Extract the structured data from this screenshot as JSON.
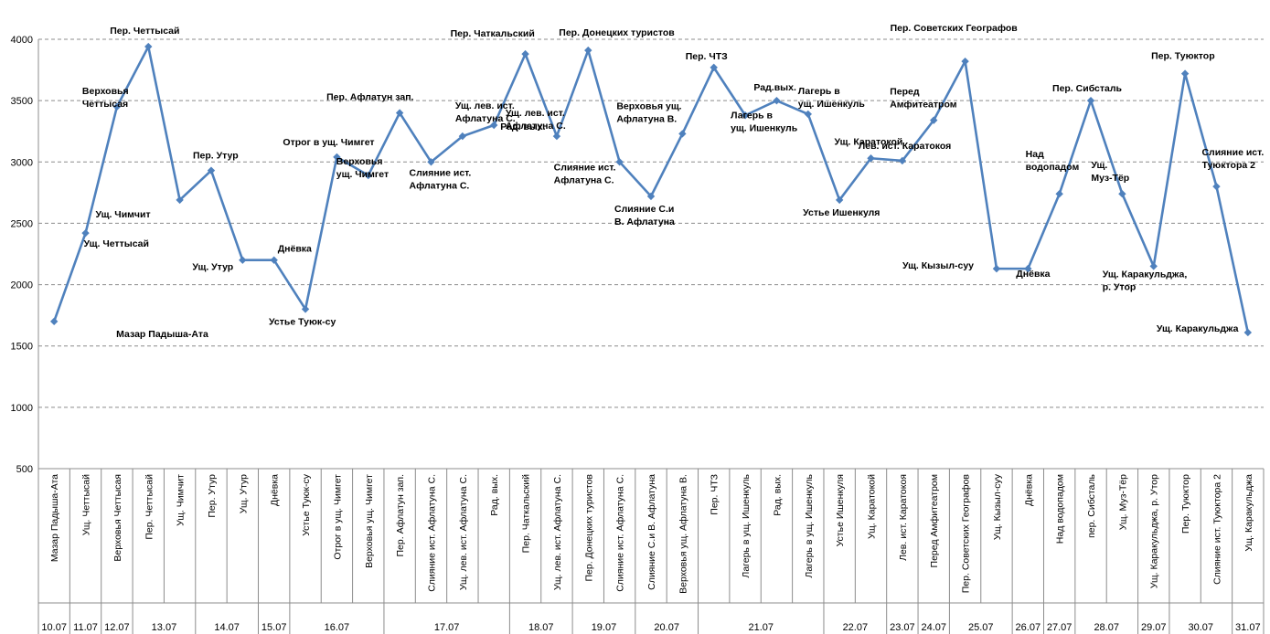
{
  "chart_data": {
    "type": "line",
    "ylim": [
      500,
      4000
    ],
    "yticks": [
      500,
      1000,
      1500,
      2000,
      2500,
      3000,
      3500,
      4000
    ],
    "grid": true,
    "legend": "none",
    "color": "#4f81bd",
    "categories": [
      "Мазар Падыша-Ата",
      "Ущ. Четтысай",
      "Верховья Четтысая",
      "Пер. Четтысай",
      "Ущ. Чимчит",
      "Пер. Утур",
      "Ущ. Утур",
      "Днёвка",
      "Устье Туюк-су",
      "Отрог в ущ. Чимгет",
      "Верховья ущ. Чимгет",
      "Пер. Афлатун зап.",
      "Слияние ист. Афлатуна С.",
      "Ущ. лев. ист. Афлатуна С.",
      "Рад. вых.",
      "Пер. Чаткальский",
      "Ущ. лев. ист. Афлатуна С.",
      "Пер. Донецких туристов",
      "Слияние ист. Афлатуна С.",
      "Слияние С.и В. Афлатуна",
      "Верховья ущ. Афлатуна В.",
      "Пер. ЧТЗ",
      "Лагерь в ущ. Ишенкуль",
      "Рад. вых.",
      "Лагерь в ущ. Ишенкуль",
      "Устье Ишенкуля",
      "Ущ. Каратокой",
      "Лев. ист. Каратокоя",
      "Перед Амфитеатром",
      "Пер. Советских Географов",
      "Ущ. Кызыл-суу",
      "Днёвка",
      "Над водопадом",
      "пер. Сибсталь",
      "Ущ. Муз-Тёр",
      "Ущ. Каракульджа, р. Утор",
      "Пер. Туюктор",
      "Слияние ист. Туюктора 2",
      "Ущ. Каракульджа"
    ],
    "values": [
      1700,
      2420,
      3450,
      3940,
      2690,
      2930,
      2200,
      2200,
      1800,
      3040,
      2890,
      3400,
      3000,
      3210,
      3300,
      3880,
      3210,
      3910,
      3000,
      2720,
      3230,
      3770,
      3380,
      3500,
      3390,
      2690,
      3030,
      3010,
      3340,
      3820,
      2130,
      2130,
      2740,
      3500,
      2740,
      2150,
      3720,
      2800,
      1610
    ],
    "point_labels": [
      "Мазар Падыша-Ата",
      "Ущ. Четтысай",
      "Верховья\nЧеттысая",
      "Пер. Четтысай",
      "Ущ. Чимчит",
      "Пер. Утур",
      "Ущ. Утур",
      "Днёвка",
      "Устье Туюк-су",
      "Отрог в ущ. Чимгет",
      "Верховья\nущ. Чимгет",
      "Пер. Афлатун зап.",
      "Слияние ист.\nАфлатуна С.",
      "Ущ. лев. ист.\nАфлатуна С.",
      "Рад. вых.",
      "Пер. Чаткальский",
      "Ущ. лев. ист.\nАфлатуна С.",
      "Пер. Донецких туристов",
      "Слияние ист.\nАфлатуна С.",
      "Слияние С.и\nВ. Афлатуна",
      "Верховья ущ.\nАфлатуна В.",
      "Пер. ЧТЗ",
      "Лагерь в\nущ. Ишенкуль",
      "Рад.вых.",
      "Лагерь в\nущ. Ишенкуль",
      "Устье Ишенкуля",
      "Ущ. Каратокой",
      "Лев. ист. Каратокоя",
      "Перед\nАмфитеатром",
      "Пер. Советских Географов",
      "Ущ. Кызыл-суу",
      "Днёвка",
      "Над\nводопадом",
      "Пер. Сибсталь",
      "Ущ.\nМуз-Тёр",
      "Ущ. Каракульджа,\nр. Утор",
      "Пер. Туюктор",
      "Слияние ист.\nТуюктора 2",
      "Ущ. Каракульджа"
    ],
    "dates": [
      {
        "label": "10.07",
        "start": 0,
        "end": 0
      },
      {
        "label": "11.07",
        "start": 1,
        "end": 1
      },
      {
        "label": "12.07",
        "start": 2,
        "end": 2
      },
      {
        "label": "13.07",
        "start": 3,
        "end": 4
      },
      {
        "label": "14.07",
        "start": 5,
        "end": 6
      },
      {
        "label": "15.07",
        "start": 7,
        "end": 7
      },
      {
        "label": "16.07",
        "start": 8,
        "end": 10
      },
      {
        "label": "17.07",
        "start": 11,
        "end": 14
      },
      {
        "label": "18.07",
        "start": 15,
        "end": 16
      },
      {
        "label": "19.07",
        "start": 17,
        "end": 18
      },
      {
        "label": "20.07",
        "start": 19,
        "end": 20
      },
      {
        "label": "21.07",
        "start": 21,
        "end": 24
      },
      {
        "label": "22.07",
        "start": 25,
        "end": 26
      },
      {
        "label": "23.07",
        "start": 27,
        "end": 27
      },
      {
        "label": "24.07",
        "start": 28,
        "end": 28
      },
      {
        "label": "25.07",
        "start": 29,
        "end": 30
      },
      {
        "label": "26.07",
        "start": 31,
        "end": 31
      },
      {
        "label": "27.07",
        "start": 32,
        "end": 32
      },
      {
        "label": "28.07",
        "start": 33,
        "end": 34
      },
      {
        "label": "29.07",
        "start": 35,
        "end": 35
      },
      {
        "label": "30.07",
        "start": 36,
        "end": 37
      },
      {
        "label": "31.07",
        "start": 38,
        "end": 38
      }
    ]
  }
}
